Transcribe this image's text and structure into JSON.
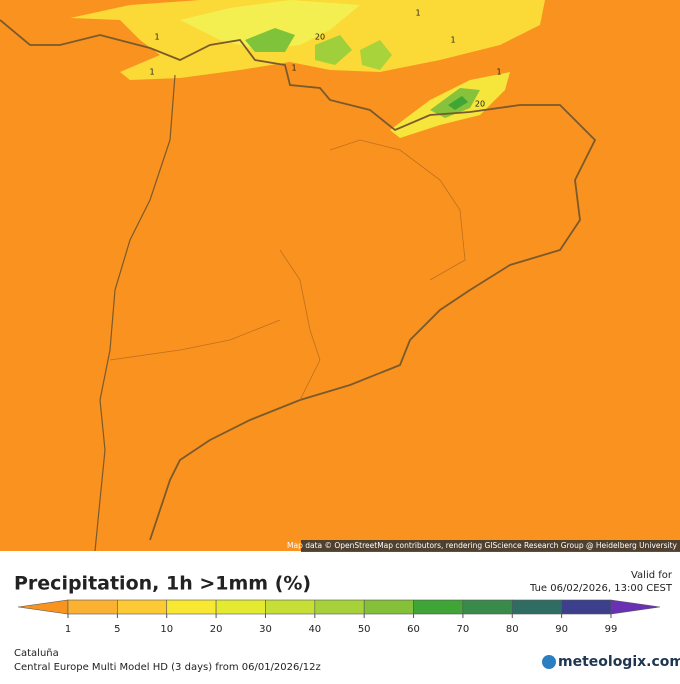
{
  "map": {
    "attribution": "Map data © OpenStreetMap contributors, rendering GIScience Research Group @ Heidelberg University",
    "contour_labels": [
      "1",
      "1",
      "1",
      "1",
      "1",
      "1",
      "20",
      "20"
    ]
  },
  "header": {
    "title": "Precipitation, 1h >1mm (%)",
    "valid_label": "Valid for",
    "valid_time": "Tue 06/02/2026, 13:00 CEST"
  },
  "colorbar": {
    "ticks": [
      1,
      5,
      10,
      20,
      30,
      40,
      50,
      60,
      70,
      80,
      90,
      99
    ],
    "colors": [
      "#f7931e",
      "#fbb232",
      "#fdc935",
      "#f9e832",
      "#e4ea30",
      "#c6df36",
      "#a6d13a",
      "#84c138",
      "#3ea536",
      "#3a8a4c",
      "#2f6d62",
      "#3b3f8c",
      "#6b31b5"
    ]
  },
  "footer": {
    "region": "Cataluña",
    "model": "Central Europe Multi Model HD (3 days) from 06/01/2026/12z",
    "brand": "meteologix.com"
  }
}
